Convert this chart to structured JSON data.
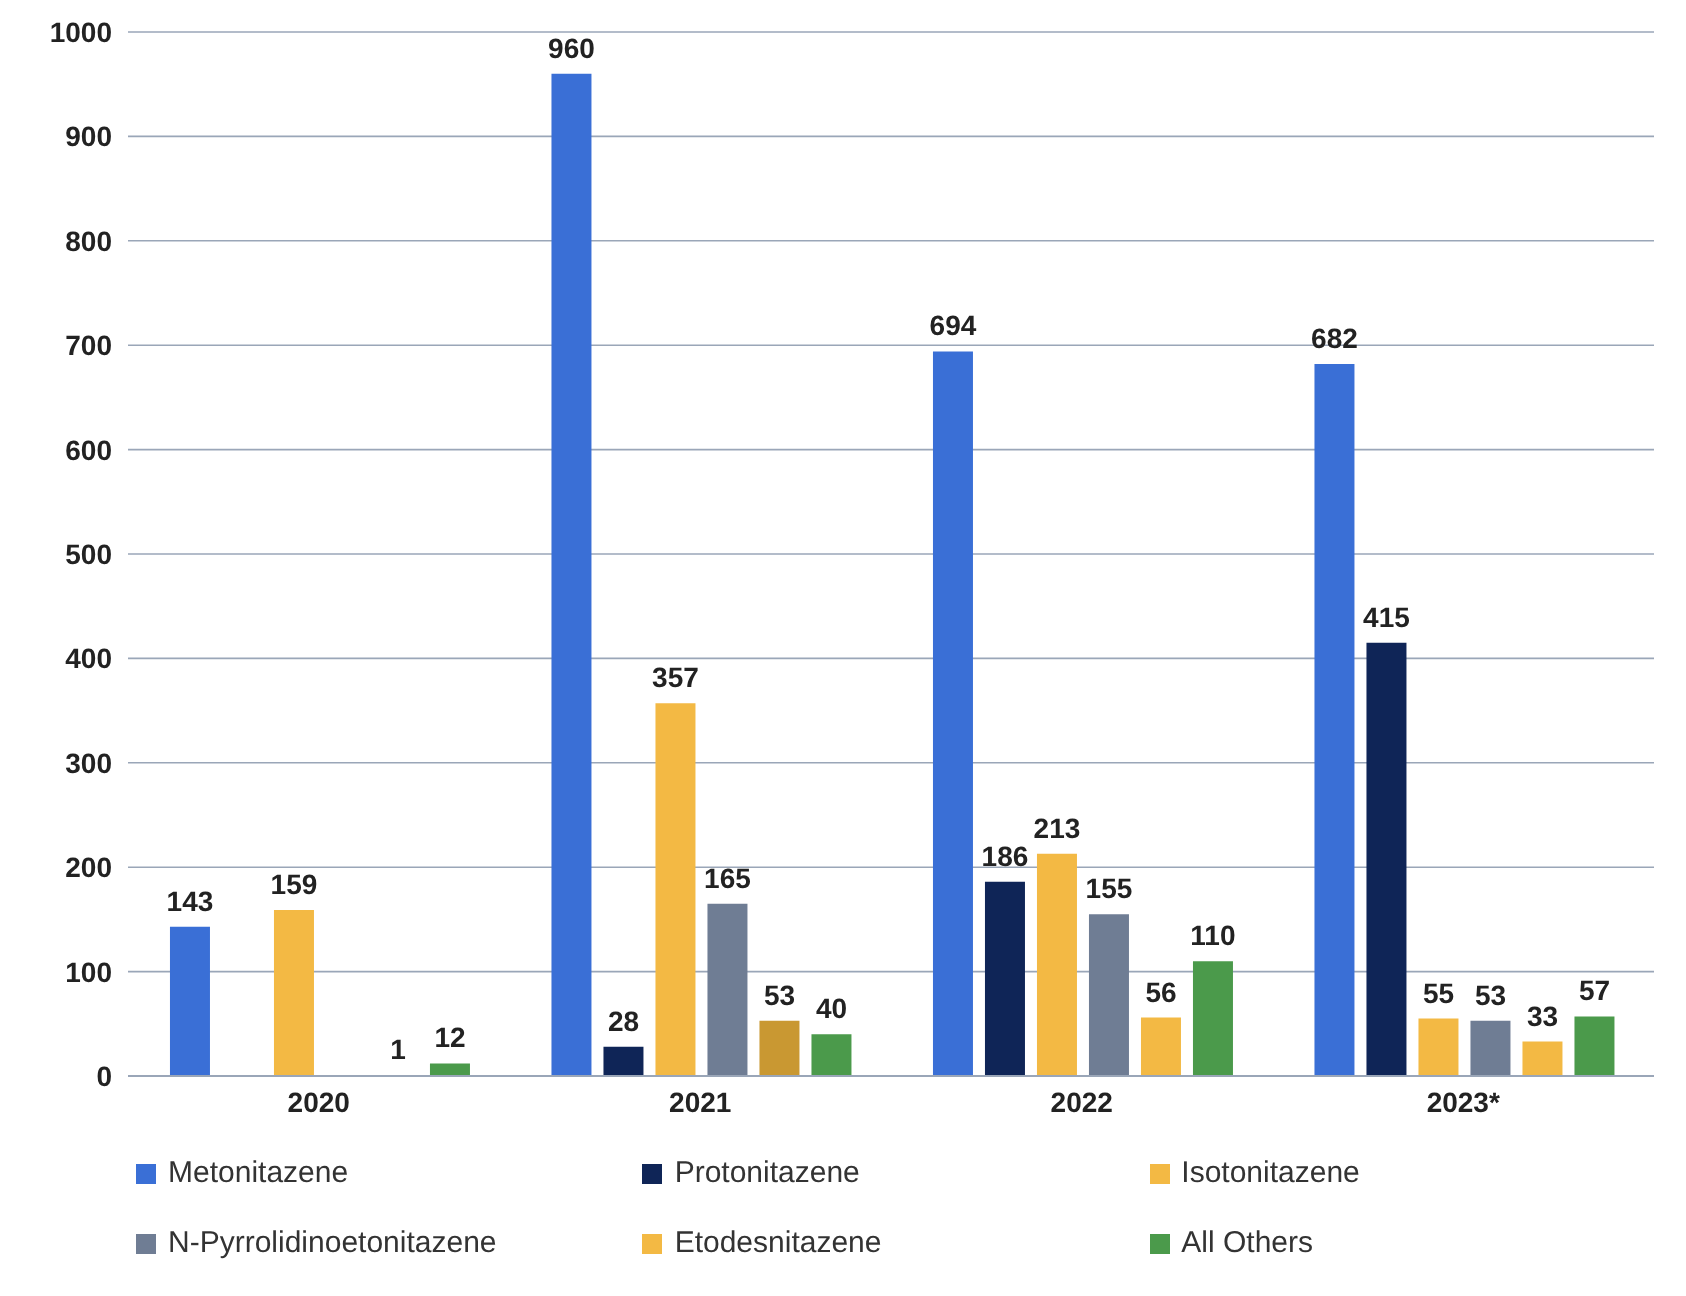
{
  "chart_data": {
    "type": "bar",
    "categories": [
      "2020",
      "2021",
      "2022",
      "2023*"
    ],
    "series": [
      {
        "name": "Metonitazene",
        "color": "#3a6fd6",
        "values": [
          143,
          960,
          694,
          682
        ]
      },
      {
        "name": "Protonitazene",
        "color": "#0f2557",
        "values": [
          null,
          28,
          186,
          415
        ]
      },
      {
        "name": "Isotonitazene",
        "color": "#f3b944",
        "values": [
          159,
          357,
          213,
          55
        ]
      },
      {
        "name": "N-Pyrrolidinoetonitazene",
        "color": "#6f7d94",
        "values": [
          null,
          165,
          155,
          53
        ]
      },
      {
        "name": "Etodesnitazene",
        "color": "#f3b944",
        "colors": [
          "#f3b944",
          "#c99832",
          "#f3b944",
          "#f3b944"
        ],
        "values": [
          1,
          53,
          56,
          33
        ]
      },
      {
        "name": "All Others",
        "color": "#4b9a4b",
        "values": [
          12,
          40,
          110,
          57
        ]
      }
    ],
    "ylim": [
      0,
      1000
    ],
    "yticks": [
      0,
      100,
      200,
      300,
      400,
      500,
      600,
      700,
      800,
      900,
      1000
    ],
    "grid": "y",
    "legend": "bottom",
    "data_labels": true
  }
}
